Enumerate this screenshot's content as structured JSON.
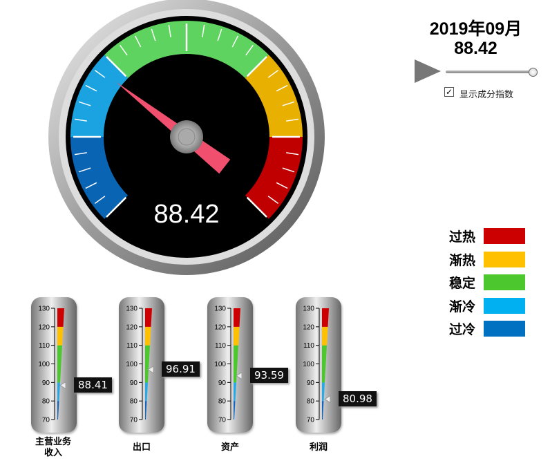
{
  "header": {
    "period": "2019年09月",
    "index_value": "88.42"
  },
  "controls": {
    "play_icon": "play-icon",
    "slider_position": 1.0,
    "show_components_label": "显示成分指数",
    "show_components_checked": true
  },
  "gauge": {
    "value": 88.42,
    "display": "88.42",
    "min": 70,
    "max": 130,
    "bands": [
      {
        "from": 70,
        "to": 80,
        "color": "#0a64b4"
      },
      {
        "from": 80,
        "to": 90,
        "color": "#1aa3e0"
      },
      {
        "from": 90,
        "to": 110,
        "color": "#5fd35f"
      },
      {
        "from": 110,
        "to": 120,
        "color": "#e8b000"
      },
      {
        "from": 120,
        "to": 130,
        "color": "#c00000"
      }
    ]
  },
  "legend": [
    {
      "label": "过热",
      "color": "#cc0000"
    },
    {
      "label": "渐热",
      "color": "#ffc000"
    },
    {
      "label": "稳定",
      "color": "#4cc82e"
    },
    {
      "label": "渐冷",
      "color": "#00b0f0"
    },
    {
      "label": "过冷",
      "color": "#0070c0"
    }
  ],
  "thermometers": {
    "ticks": [
      "130",
      "120",
      "110",
      "100",
      "90",
      "80",
      "70"
    ],
    "items": [
      {
        "name": "主营业务收入",
        "value": 88.41,
        "display": "88.41"
      },
      {
        "name": "出口",
        "value": 96.91,
        "display": "96.91"
      },
      {
        "name": "资产",
        "value": 93.59,
        "display": "93.59"
      },
      {
        "name": "利润",
        "value": 80.98,
        "display": "80.98"
      }
    ]
  }
}
